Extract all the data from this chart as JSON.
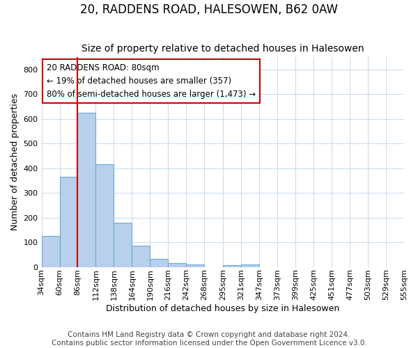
{
  "title": "20, RADDENS ROAD, HALESOWEN, B62 0AW",
  "subtitle": "Size of property relative to detached houses in Halesowen",
  "xlabel": "Distribution of detached houses by size in Halesowen",
  "ylabel": "Number of detached properties",
  "footer_line1": "Contains HM Land Registry data © Crown copyright and database right 2024.",
  "footer_line2": "Contains public sector information licensed under the Open Government Licence v3.0.",
  "bin_edges": [
    34,
    60,
    86,
    112,
    138,
    164,
    190,
    216,
    242,
    268,
    295,
    321,
    347,
    373,
    399,
    425,
    451,
    477,
    503,
    529,
    555
  ],
  "bar_heights": [
    127,
    365,
    625,
    415,
    178,
    85,
    32,
    15,
    10,
    0,
    8,
    10,
    0,
    0,
    0,
    0,
    0,
    0,
    0,
    0
  ],
  "bar_color": "#b8d0ea",
  "bar_edge_color": "#6aaad4",
  "vline_x": 86,
  "vline_color": "#cc0000",
  "annotation_line1": "20 RADDENS ROAD: 80sqm",
  "annotation_line2": "← 19% of detached houses are smaller (357)",
  "annotation_line3": "80% of semi-detached houses are larger (1,473) →",
  "ylim": [
    0,
    850
  ],
  "yticks": [
    0,
    100,
    200,
    300,
    400,
    500,
    600,
    700,
    800
  ],
  "bg_color": "#ffffff",
  "grid_color": "#c8d8ea",
  "title_fontsize": 12,
  "subtitle_fontsize": 10,
  "axis_label_fontsize": 9,
  "tick_fontsize": 8,
  "footer_fontsize": 7.5
}
